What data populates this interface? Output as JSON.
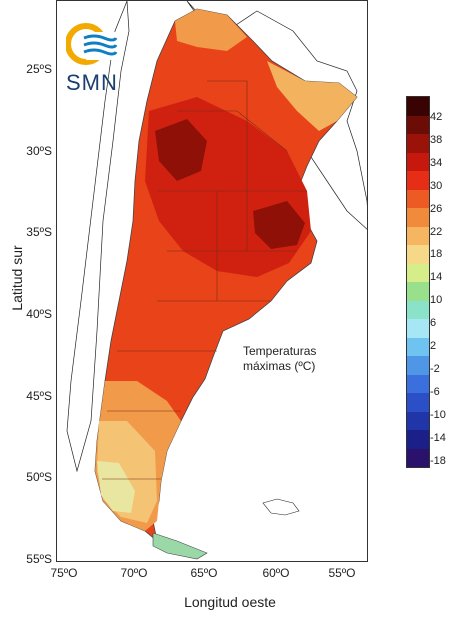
{
  "logo": {
    "text": "SMN"
  },
  "axes": {
    "ylabel": "Latitud sur",
    "xlabel": "Longitud oeste",
    "yticks": [
      "25ºS",
      "30ºS",
      "35ºS",
      "40ºS",
      "45ºS",
      "50ºS",
      "55ºS"
    ],
    "xticks": [
      "75ºO",
      "70ºO",
      "65ºO",
      "60ºO",
      "55ºO"
    ]
  },
  "annotation": {
    "line1": "Temperaturas",
    "line2": "máximas (ºC)"
  },
  "legend": {
    "labels": [
      "42",
      "38",
      "34",
      "30",
      "26",
      "22",
      "18",
      "14",
      "10",
      "6",
      "2",
      "-2",
      "-6",
      "-10",
      "-14",
      "-18"
    ],
    "colors": [
      "#3a0303",
      "#6b0c06",
      "#9a1208",
      "#c6180c",
      "#e52e15",
      "#ee5a24",
      "#f28a3c",
      "#f6b561",
      "#f5d888",
      "#d6ee8a",
      "#98e08c",
      "#8ae2c8",
      "#a7e6f5",
      "#6fc3f0",
      "#4f97e6",
      "#3a6fdd",
      "#2b4fc7",
      "#1f35a8",
      "#1a2088",
      "#2a126c"
    ]
  }
}
